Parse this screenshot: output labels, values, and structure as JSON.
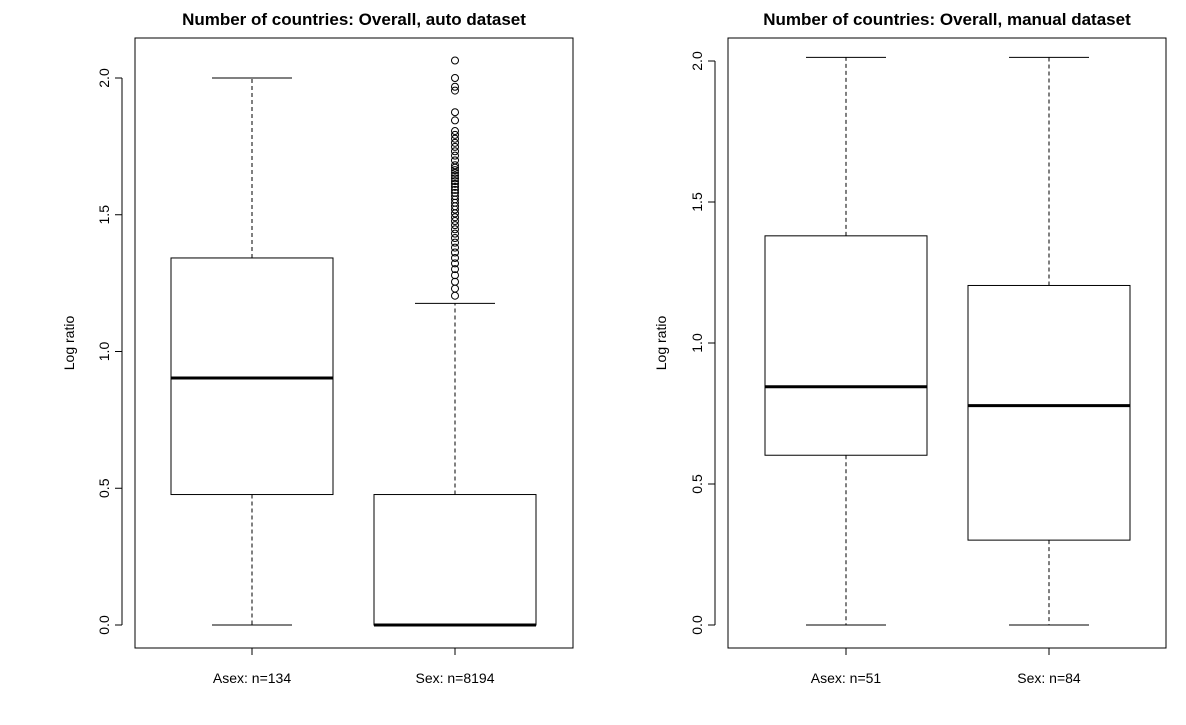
{
  "chart_data": [
    {
      "type": "boxplot",
      "title": "Number of countries: Overall, auto dataset",
      "ylabel": "Log ratio",
      "xlabel": "",
      "ylim": [
        -0.08,
        2.15
      ],
      "yticks": [
        0.0,
        0.5,
        1.0,
        1.5,
        2.0
      ],
      "ytick_labels": [
        "0.0",
        "0.5",
        "1.0",
        "1.5",
        "2.0"
      ],
      "grid": false,
      "categories": [
        "Asex: n=134",
        "Sex: n=8194"
      ],
      "boxes": [
        {
          "label": "Asex: n=134",
          "whisker_low": 0.0,
          "q1": 0.477,
          "median": 0.903,
          "q3": 1.342,
          "whisker_high": 2.0,
          "outliers": []
        },
        {
          "label": "Sex: n=8194",
          "whisker_low": 0.0,
          "q1": 0.0,
          "median": 0.0,
          "q3": 0.477,
          "whisker_high": 1.176,
          "outliers": [
            1.204,
            1.23,
            1.255,
            1.279,
            1.301,
            1.322,
            1.342,
            1.362,
            1.38,
            1.398,
            1.415,
            1.431,
            1.447,
            1.462,
            1.477,
            1.491,
            1.505,
            1.519,
            1.531,
            1.544,
            1.556,
            1.568,
            1.58,
            1.591,
            1.602,
            1.613,
            1.623,
            1.633,
            1.643,
            1.653,
            1.663,
            1.672,
            1.681,
            1.699,
            1.716,
            1.732,
            1.748,
            1.763,
            1.778,
            1.792,
            1.806,
            1.845,
            1.875,
            1.954,
            1.968,
            2.0,
            2.064
          ]
        }
      ]
    },
    {
      "type": "boxplot",
      "title": "Number of countries: Overall, manual dataset",
      "ylabel": "Log ratio",
      "xlabel": "",
      "ylim": [
        -0.08,
        2.15
      ],
      "yticks": [
        0.0,
        0.5,
        1.0,
        1.5,
        2.0
      ],
      "ytick_labels": [
        "0.0",
        "0.5",
        "1.0",
        "1.5",
        "2.0"
      ],
      "grid": false,
      "categories": [
        "Asex: n=51",
        "Sex: n=84"
      ],
      "boxes": [
        {
          "label": "Asex: n=51",
          "whisker_low": 0.0,
          "q1": 0.602,
          "median": 0.845,
          "q3": 1.38,
          "whisker_high": 2.013,
          "outliers": []
        },
        {
          "label": "Sex: n=84",
          "whisker_low": 0.0,
          "q1": 0.301,
          "median": 0.778,
          "q3": 1.204,
          "whisker_high": 2.013,
          "outliers": []
        }
      ]
    }
  ]
}
